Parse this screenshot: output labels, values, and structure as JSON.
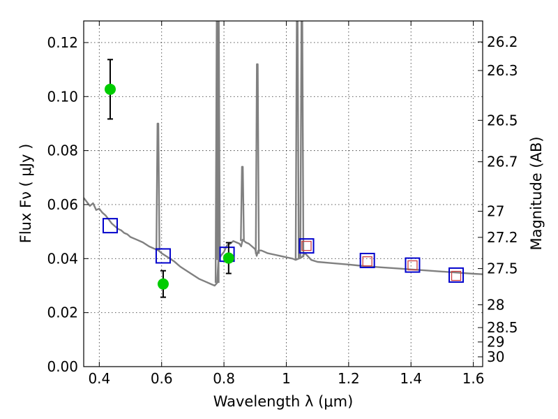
{
  "chart_data": {
    "type": "scatter",
    "title": "",
    "xlabel": "Wavelength  λ (μm)",
    "ylabel": "Flux  Fν  ( μJy )",
    "ylabel_right": "Magnitude (AB)",
    "xlim": [
      0.35,
      1.63
    ],
    "ylim": [
      0.0,
      0.128
    ],
    "grid": true,
    "x_ticks": [
      {
        "v": 0.4,
        "label": "0.4"
      },
      {
        "v": 0.6,
        "label": "0.6"
      },
      {
        "v": 0.8,
        "label": "0.8"
      },
      {
        "v": 1.0,
        "label": "1"
      },
      {
        "v": 1.2,
        "label": "1.2"
      },
      {
        "v": 1.4,
        "label": "1.4"
      },
      {
        "v": 1.6,
        "label": "1.6"
      }
    ],
    "y_ticks": [
      {
        "v": 0.0,
        "label": "0.00"
      },
      {
        "v": 0.02,
        "label": "0.02"
      },
      {
        "v": 0.04,
        "label": "0.04"
      },
      {
        "v": 0.06,
        "label": "0.06"
      },
      {
        "v": 0.08,
        "label": "0.08"
      },
      {
        "v": 0.1,
        "label": "0.10"
      },
      {
        "v": 0.12,
        "label": "0.12"
      }
    ],
    "mag_ticks": [
      {
        "mag": 26.2,
        "label": "26.2"
      },
      {
        "mag": 26.3,
        "label": "26.3"
      },
      {
        "mag": 26.5,
        "label": "26.5"
      },
      {
        "mag": 26.7,
        "label": "26.7"
      },
      {
        "mag": 27.0,
        "label": "27"
      },
      {
        "mag": 27.2,
        "label": "27.2"
      },
      {
        "mag": 27.5,
        "label": "27.5"
      },
      {
        "mag": 28.0,
        "label": "28"
      },
      {
        "mag": 28.5,
        "label": "28.5"
      },
      {
        "mag": 29.0,
        "label": "29"
      },
      {
        "mag": 30.0,
        "label": "30"
      }
    ],
    "series": [
      {
        "name": "model_spectrum",
        "kind": "line",
        "color": "#808080",
        "x": [
          0.35,
          0.36,
          0.37,
          0.38,
          0.39,
          0.4,
          0.41,
          0.42,
          0.43,
          0.44,
          0.45,
          0.46,
          0.47,
          0.48,
          0.49,
          0.5,
          0.52,
          0.54,
          0.56,
          0.58,
          0.59,
          0.6,
          0.62,
          0.64,
          0.66,
          0.68,
          0.7,
          0.72,
          0.74,
          0.76,
          0.77,
          0.778,
          0.782,
          0.79,
          0.8,
          0.81,
          0.82,
          0.83,
          0.84,
          0.85,
          0.855,
          0.86,
          0.87,
          0.88,
          0.89,
          0.9,
          0.905,
          0.91,
          0.92,
          0.94,
          0.96,
          0.98,
          1.0,
          1.02,
          1.03,
          1.05,
          1.06,
          1.08,
          1.1,
          1.15,
          1.2,
          1.25,
          1.3,
          1.35,
          1.4,
          1.45,
          1.5,
          1.55,
          1.6,
          1.63
        ],
        "y": [
          0.0625,
          0.061,
          0.0595,
          0.0605,
          0.058,
          0.0585,
          0.057,
          0.056,
          0.0545,
          0.053,
          0.052,
          0.051,
          0.0505,
          0.0495,
          0.049,
          0.048,
          0.047,
          0.046,
          0.0445,
          0.0435,
          0.043,
          0.042,
          0.0405,
          0.039,
          0.037,
          0.0355,
          0.034,
          0.0325,
          0.0315,
          0.0305,
          0.03,
          0.031,
          0.0395,
          0.041,
          0.0425,
          0.045,
          0.0455,
          0.0465,
          0.046,
          0.0455,
          0.0445,
          0.047,
          0.046,
          0.0455,
          0.0445,
          0.0435,
          0.041,
          0.043,
          0.043,
          0.042,
          0.0415,
          0.041,
          0.0405,
          0.04,
          0.0395,
          0.0405,
          0.042,
          0.0395,
          0.0388,
          0.0383,
          0.0378,
          0.0372,
          0.0368,
          0.0364,
          0.036,
          0.0356,
          0.0352,
          0.0348,
          0.0344,
          0.0342
        ],
        "spikes": [
          {
            "x": 0.588,
            "y": 0.09
          },
          {
            "x": 0.778,
            "y": 0.128
          },
          {
            "x": 0.782,
            "y": 0.128
          },
          {
            "x": 0.859,
            "y": 0.074
          },
          {
            "x": 0.907,
            "y": 0.112
          },
          {
            "x": 1.035,
            "y": 0.128
          },
          {
            "x": 1.05,
            "y": 0.128
          }
        ]
      },
      {
        "name": "model_photometry",
        "kind": "open_square",
        "color": "#0000cc",
        "x": [
          0.435,
          0.605,
          0.81,
          1.065,
          1.26,
          1.405,
          1.545
        ],
        "y": [
          0.0522,
          0.041,
          0.0416,
          0.0447,
          0.0393,
          0.0376,
          0.0339
        ]
      },
      {
        "name": "observed_photometry_nir",
        "kind": "open_square",
        "color": "#cc4040",
        "x": [
          1.065,
          1.26,
          1.405,
          1.545
        ],
        "y": [
          0.0447,
          0.039,
          0.0375,
          0.0336
        ]
      },
      {
        "name": "observed_photometry_optical",
        "kind": "point_with_errorbar",
        "color": "#00cc00",
        "x": [
          0.435,
          0.605,
          0.815
        ],
        "y": [
          0.1027,
          0.0306,
          0.0402
        ],
        "err": [
          0.011,
          0.0049,
          0.0057
        ]
      }
    ]
  }
}
